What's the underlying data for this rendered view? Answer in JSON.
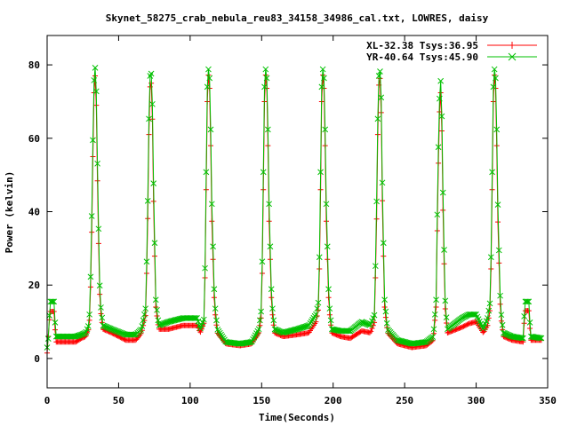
{
  "chart_data": {
    "type": "line",
    "title": "Skynet_58275_crab_nebula_reu83_34158_34986_cal.txt, LOWRES, daisy",
    "xlabel": "Time(Seconds)",
    "ylabel": "Power (kelvin)",
    "xlim": [
      0,
      350
    ],
    "ylim": [
      -8,
      88
    ],
    "xticks": [
      0,
      50,
      100,
      150,
      200,
      250,
      300,
      350
    ],
    "yticks": [
      0,
      20,
      40,
      60,
      80
    ],
    "grid": false,
    "legend_position": "top-right",
    "series_style": [
      {
        "color": "#ff0000",
        "marker": "plus"
      },
      {
        "color": "#00c000",
        "marker": "cross"
      }
    ],
    "series": [
      {
        "name": "XL-32.38 Tsys:36.95",
        "baseline_segments": [
          [
            0,
            1.5
          ],
          [
            2,
            12.8
          ],
          [
            5,
            12.8
          ],
          [
            6,
            4.5
          ],
          [
            20,
            4.5
          ],
          [
            24,
            5.5
          ],
          [
            27,
            6
          ],
          [
            29,
            8
          ],
          [
            30,
            12
          ],
          [
            31.5,
            40
          ],
          [
            32.5,
            70
          ],
          [
            33.5,
            78
          ],
          [
            34.5,
            68
          ],
          [
            35.5,
            40
          ],
          [
            37,
            14
          ],
          [
            39,
            8
          ],
          [
            45,
            7
          ],
          [
            55,
            5
          ],
          [
            62,
            5
          ],
          [
            66,
            7
          ],
          [
            69,
            12
          ],
          [
            70.5,
            40
          ],
          [
            71.5,
            70
          ],
          [
            72.5,
            78
          ],
          [
            73.5,
            68
          ],
          [
            74.5,
            40
          ],
          [
            76,
            14
          ],
          [
            78,
            8
          ],
          [
            85,
            8
          ],
          [
            95,
            9
          ],
          [
            100,
            9
          ],
          [
            105,
            9
          ],
          [
            107,
            7
          ],
          [
            110,
            10
          ],
          [
            111,
            40
          ],
          [
            112,
            70
          ],
          [
            113,
            79
          ],
          [
            114,
            70
          ],
          [
            115,
            40
          ],
          [
            117,
            14
          ],
          [
            119,
            7
          ],
          [
            125,
            4
          ],
          [
            135,
            3.5
          ],
          [
            143,
            4
          ],
          [
            148,
            7
          ],
          [
            150,
            12
          ],
          [
            151,
            40
          ],
          [
            152,
            70
          ],
          [
            153,
            79
          ],
          [
            154,
            70
          ],
          [
            155,
            40
          ],
          [
            157,
            14
          ],
          [
            159,
            7
          ],
          [
            165,
            6
          ],
          [
            175,
            6.5
          ],
          [
            183,
            7
          ],
          [
            188,
            10
          ],
          [
            190,
            14
          ],
          [
            191,
            40
          ],
          [
            192,
            70
          ],
          [
            193,
            79
          ],
          [
            194,
            70
          ],
          [
            195,
            40
          ],
          [
            197,
            14
          ],
          [
            199,
            7
          ],
          [
            205,
            6
          ],
          [
            212,
            5.5
          ],
          [
            220,
            7.5
          ],
          [
            226,
            7
          ],
          [
            229,
            10
          ],
          [
            230.5,
            40
          ],
          [
            231.5,
            70
          ],
          [
            232.5,
            79
          ],
          [
            233.5,
            70
          ],
          [
            234.5,
            40
          ],
          [
            236,
            14
          ],
          [
            238,
            7
          ],
          [
            245,
            4
          ],
          [
            255,
            3
          ],
          [
            265,
            3.5
          ],
          [
            270,
            5
          ],
          [
            272,
            14
          ],
          [
            273,
            40
          ],
          [
            274,
            62
          ],
          [
            275,
            75
          ],
          [
            276,
            62
          ],
          [
            277,
            35
          ],
          [
            278.5,
            12
          ],
          [
            280,
            7
          ],
          [
            290,
            8.5
          ],
          [
            295,
            9.5
          ],
          [
            300,
            10
          ],
          [
            305,
            7
          ],
          [
            308,
            9
          ],
          [
            310,
            14
          ],
          [
            311,
            40
          ],
          [
            312,
            70
          ],
          [
            313,
            79
          ],
          [
            314,
            70
          ],
          [
            315,
            40
          ],
          [
            317,
            12
          ],
          [
            319,
            6
          ],
          [
            325,
            5
          ],
          [
            333,
            4.5
          ],
          [
            334,
            13
          ],
          [
            337,
            13
          ],
          [
            338,
            5
          ],
          [
            346,
            5
          ]
        ]
      },
      {
        "name": "YR-40.64 Tsys:45.90",
        "baseline_segments": [
          [
            0,
            3
          ],
          [
            1,
            6
          ],
          [
            2,
            15.5
          ],
          [
            5,
            15.5
          ],
          [
            6,
            6
          ],
          [
            20,
            6
          ],
          [
            24,
            6.5
          ],
          [
            27,
            7
          ],
          [
            29,
            9
          ],
          [
            30,
            14
          ],
          [
            31.5,
            45
          ],
          [
            32.5,
            74
          ],
          [
            33.5,
            80
          ],
          [
            34.5,
            72
          ],
          [
            35.5,
            45
          ],
          [
            37,
            16
          ],
          [
            39,
            9
          ],
          [
            45,
            8
          ],
          [
            55,
            6.5
          ],
          [
            62,
            6.5
          ],
          [
            66,
            8
          ],
          [
            69,
            14
          ],
          [
            70.5,
            45
          ],
          [
            71.5,
            74
          ],
          [
            72.5,
            80
          ],
          [
            73.5,
            72
          ],
          [
            74.5,
            45
          ],
          [
            76,
            16
          ],
          [
            78,
            9
          ],
          [
            85,
            10
          ],
          [
            95,
            11
          ],
          [
            100,
            11
          ],
          [
            105,
            11
          ],
          [
            107,
            8
          ],
          [
            110,
            11
          ],
          [
            111,
            45
          ],
          [
            112,
            74
          ],
          [
            113,
            80
          ],
          [
            114,
            74
          ],
          [
            115,
            45
          ],
          [
            117,
            16
          ],
          [
            119,
            8
          ],
          [
            125,
            4.5
          ],
          [
            135,
            4
          ],
          [
            143,
            4.5
          ],
          [
            148,
            8
          ],
          [
            150,
            14
          ],
          [
            151,
            45
          ],
          [
            152,
            74
          ],
          [
            153,
            80
          ],
          [
            154,
            74
          ],
          [
            155,
            45
          ],
          [
            157,
            16
          ],
          [
            159,
            8
          ],
          [
            165,
            7
          ],
          [
            175,
            8
          ],
          [
            183,
            9
          ],
          [
            188,
            12
          ],
          [
            190,
            16
          ],
          [
            191,
            45
          ],
          [
            192,
            74
          ],
          [
            193,
            80
          ],
          [
            194,
            74
          ],
          [
            195,
            45
          ],
          [
            197,
            16
          ],
          [
            199,
            8
          ],
          [
            205,
            7.5
          ],
          [
            212,
            7.5
          ],
          [
            220,
            10
          ],
          [
            226,
            9
          ],
          [
            229,
            12
          ],
          [
            230.5,
            45
          ],
          [
            231.5,
            74
          ],
          [
            232.5,
            80
          ],
          [
            233.5,
            74
          ],
          [
            234.5,
            45
          ],
          [
            236,
            16
          ],
          [
            238,
            8
          ],
          [
            245,
            5
          ],
          [
            255,
            4
          ],
          [
            265,
            4.5
          ],
          [
            270,
            6
          ],
          [
            272,
            16
          ],
          [
            273,
            45
          ],
          [
            274,
            66
          ],
          [
            275,
            78
          ],
          [
            276,
            66
          ],
          [
            277,
            40
          ],
          [
            278.5,
            14
          ],
          [
            280,
            8
          ],
          [
            290,
            11
          ],
          [
            295,
            12
          ],
          [
            300,
            12
          ],
          [
            305,
            8
          ],
          [
            308,
            11
          ],
          [
            310,
            16
          ],
          [
            311,
            45
          ],
          [
            312,
            74
          ],
          [
            313,
            80
          ],
          [
            314,
            74
          ],
          [
            315,
            45
          ],
          [
            317,
            14
          ],
          [
            319,
            7
          ],
          [
            325,
            6
          ],
          [
            333,
            5.5
          ],
          [
            334,
            15.5
          ],
          [
            337,
            15.5
          ],
          [
            338,
            6
          ],
          [
            346,
            5.5
          ]
        ]
      }
    ]
  }
}
